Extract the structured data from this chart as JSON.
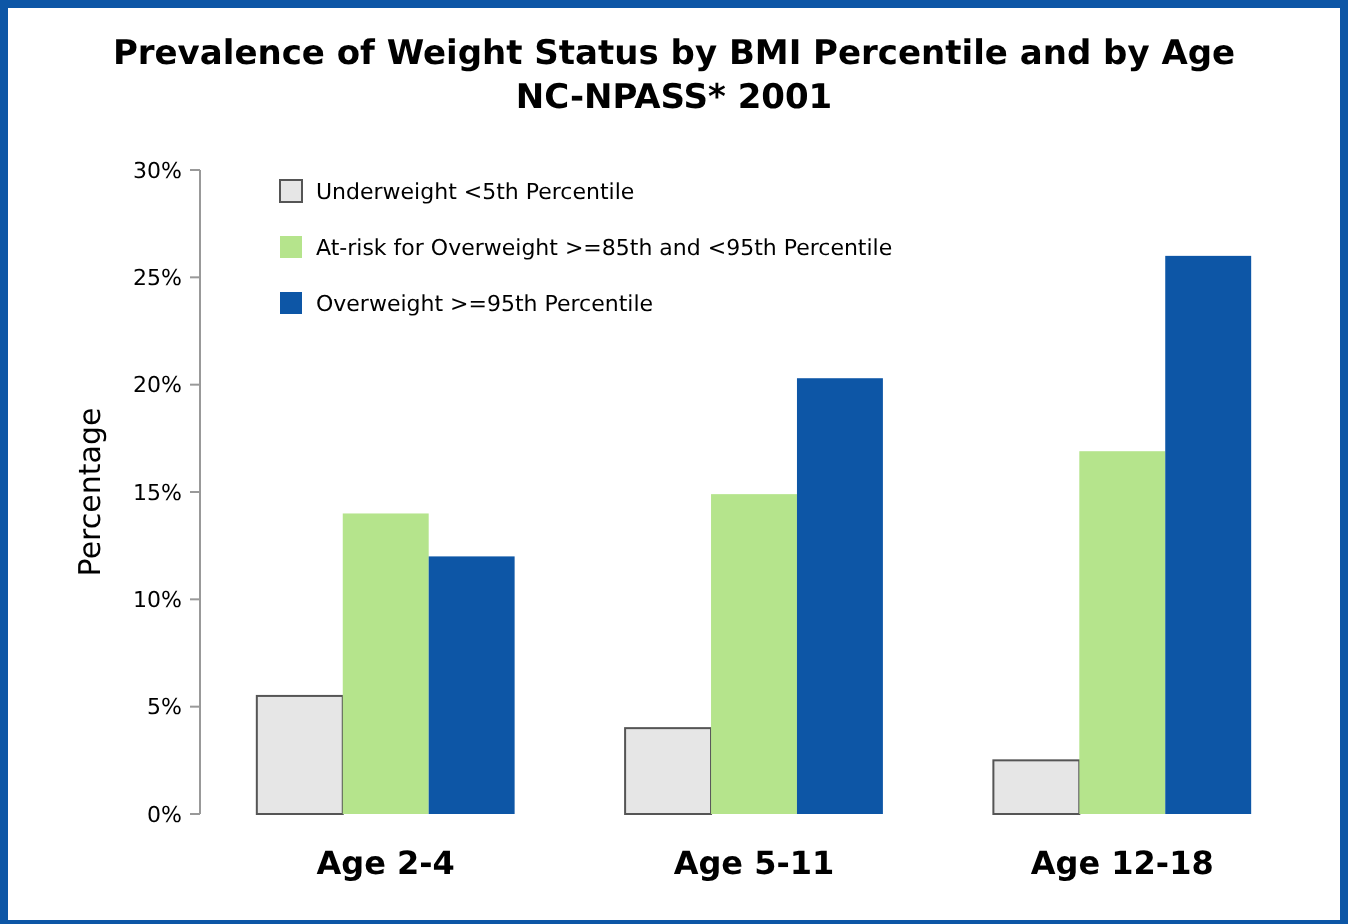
{
  "chart_data": {
    "type": "bar",
    "title": "Prevalence of Weight Status by BMI Percentile and by Age",
    "subtitle": "NC-NPASS* 2001",
    "ylabel": "Percentage",
    "categories": [
      "Age 2-4",
      "Age 5-11",
      "Age 12-18"
    ],
    "series": [
      {
        "name": "Underweight <5th Percentile",
        "color": "#e6e6e6",
        "values": [
          5.5,
          4.0,
          2.5
        ]
      },
      {
        "name": "At-risk for Overweight >=85th and <95th Percentile",
        "color": "#b5e48c",
        "values": [
          14.0,
          14.9,
          16.9
        ]
      },
      {
        "name": "Overweight >=95th Percentile",
        "color": "#0d56a6",
        "values": [
          12.0,
          20.3,
          26.0
        ]
      }
    ],
    "ylim": [
      0,
      30
    ],
    "yticks": [
      {
        "value": 0,
        "label": "0%"
      },
      {
        "value": 5,
        "label": "5%"
      },
      {
        "value": 10,
        "label": "10%"
      },
      {
        "value": 15,
        "label": "15%"
      },
      {
        "value": 20,
        "label": "20%"
      },
      {
        "value": 25,
        "label": "25%"
      },
      {
        "value": 30,
        "label": "30%"
      }
    ],
    "legend": "top left"
  }
}
